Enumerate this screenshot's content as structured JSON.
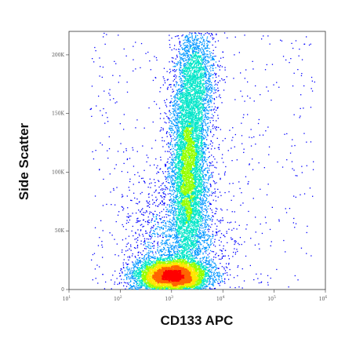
{
  "chart_data": {
    "type": "scatter",
    "subtype": "flow-cytometry-density-dot-plot",
    "title": "",
    "xlabel": "CD133 APC",
    "ylabel": "Side Scatter",
    "x_scale": "log",
    "xlim": [
      10,
      1000000
    ],
    "ylim": [
      0,
      220000
    ],
    "x_ticks": [
      {
        "value": 10,
        "base": "10",
        "exp": "1"
      },
      {
        "value": 100,
        "base": "10",
        "exp": "2"
      },
      {
        "value": 1000,
        "base": "10",
        "exp": "3"
      },
      {
        "value": 10000,
        "base": "10",
        "exp": "4"
      },
      {
        "value": 100000,
        "base": "10",
        "exp": "5"
      },
      {
        "value": 1000000,
        "base": "10",
        "exp": "6"
      }
    ],
    "y_ticks": [
      {
        "value": 0,
        "label": "0"
      },
      {
        "value": 50000,
        "label": "50K"
      },
      {
        "value": 100000,
        "label": "100K"
      },
      {
        "value": 150000,
        "label": "150K"
      },
      {
        "value": 200000,
        "label": "200K"
      }
    ],
    "populations": [
      {
        "x_center": 1000,
        "y_center": 12000,
        "x_spread_decades": 0.35,
        "y_spread": 7000,
        "share": 0.42
      },
      {
        "x_center": 2100,
        "y_center": 100000,
        "x_spread_decades": 0.18,
        "y_spread": 42000,
        "share": 0.36
      },
      {
        "x_center": 2800,
        "y_center": 180000,
        "x_spread_decades": 0.2,
        "y_spread": 25000,
        "share": 0.12
      },
      {
        "x_center": 1200,
        "y_center": 40000,
        "x_spread_decades": 0.5,
        "y_spread": 30000,
        "share": 0.1
      }
    ],
    "density_colors": [
      "#0000ff",
      "#0096ff",
      "#00e6c8",
      "#96ff00",
      "#ffe600",
      "#ff6400",
      "#ff0000"
    ],
    "grid": false,
    "legend": "none"
  }
}
